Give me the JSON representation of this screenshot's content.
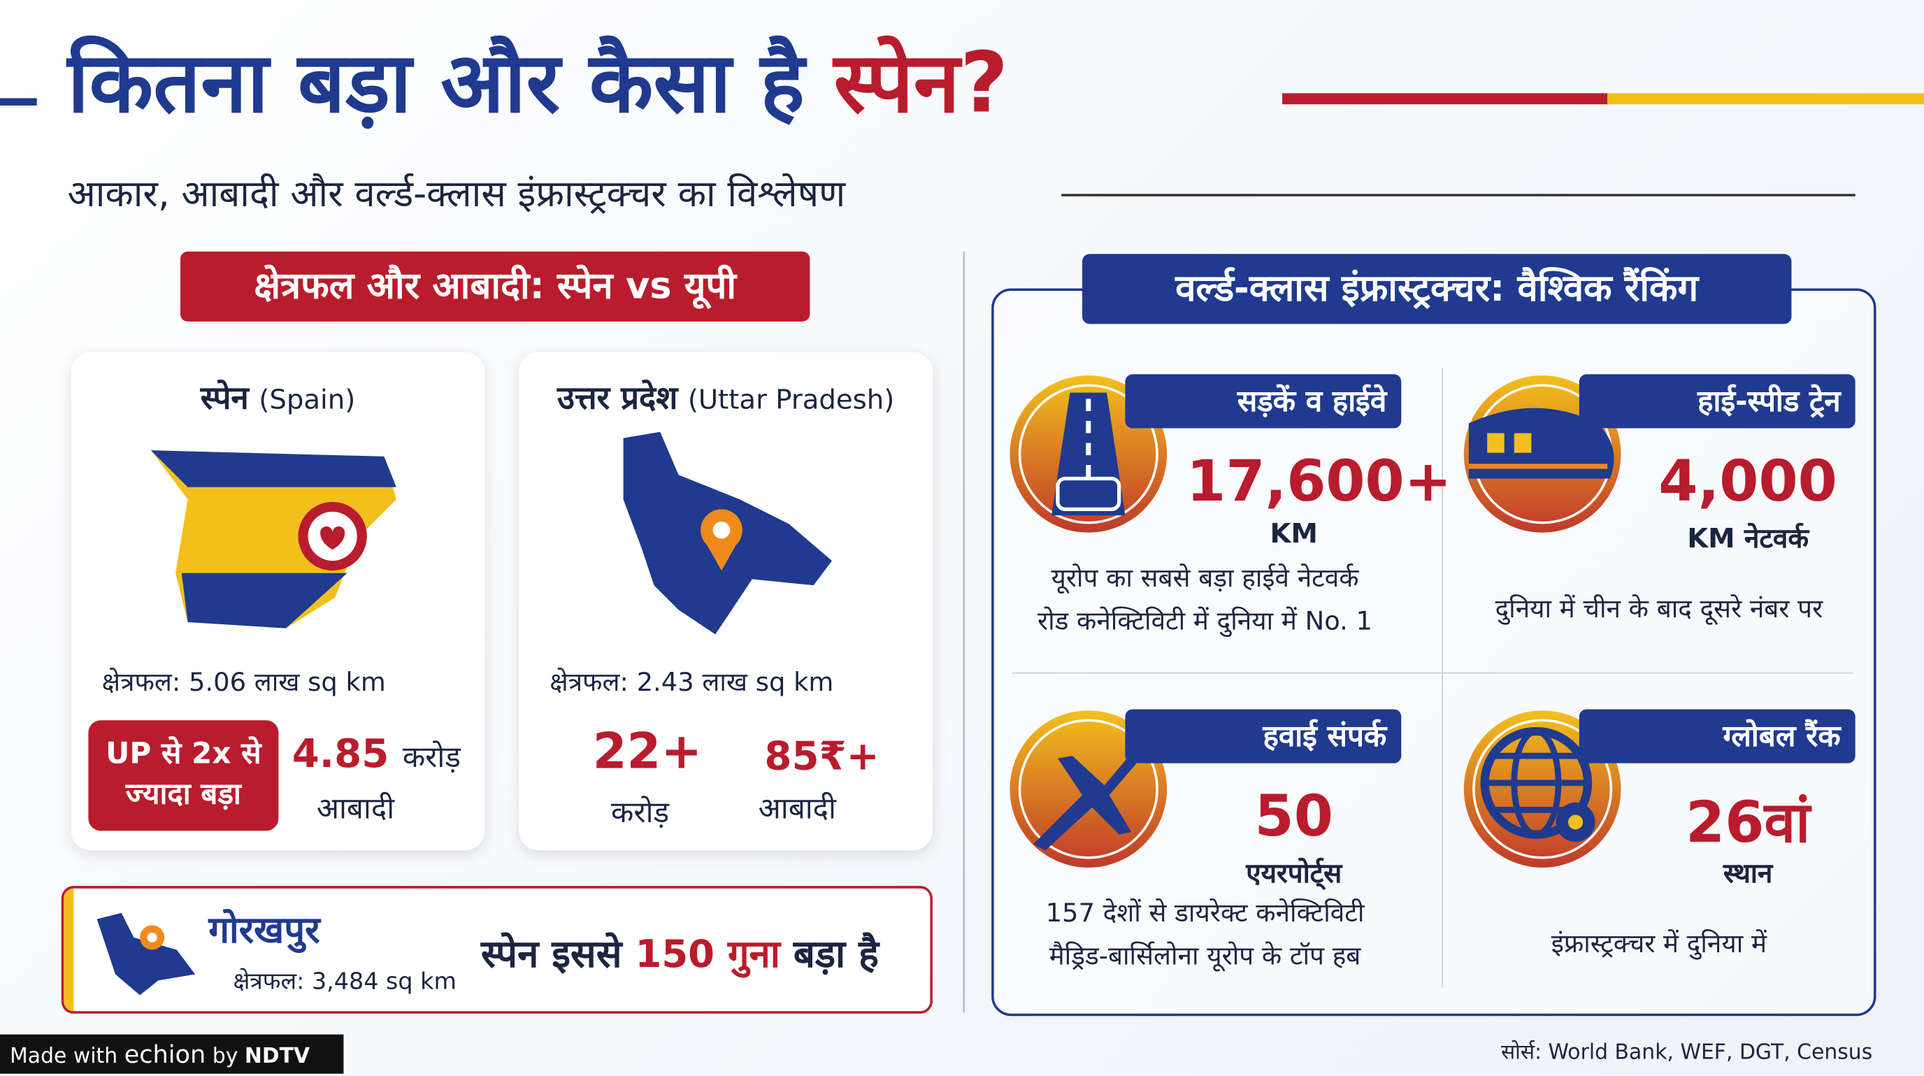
{
  "header": {
    "title_main": "कितना बड़ा और कैसा है",
    "title_highlight": "स्पेन?",
    "subtitle": "आकार, आबादी और वर्ल्ड-क्लास इंफ्रास्ट्रक्चर का विश्लेषण"
  },
  "comparison": {
    "heading": "क्षेत्रफल और आबादी: स्पेन vs यूपी",
    "spain": {
      "name": "स्पेन",
      "name_en": "(Spain)",
      "area": "क्षेत्रफल: 5.06 लाख sq km",
      "badge": [
        "UP से 2x से",
        "ज्यादा बड़ा"
      ],
      "population_value": "4.85",
      "population_unit": "करोड़",
      "population_label": "आबादी"
    },
    "up": {
      "name": "उत्तर प्रदेश",
      "name_en": "(Uttar Pradesh)",
      "area": "क्षेत्रफल: 2.43 लाख sq km",
      "first_value": "22+",
      "first_unit": "करोड़",
      "second_value": "85₹+",
      "second_label": "आबादी"
    }
  },
  "gorakhpur": {
    "name": "गोरखपुर",
    "area": "क्षेत्रफल: 3,484 sq km",
    "statement_pre": "स्पेन इससे",
    "statement_highlight": "150 गुना",
    "statement_post": "बड़ा है"
  },
  "infrastructure": {
    "heading": "वर्ल्ड-क्लास इंफ्रास्ट्रक्चर: वैश्विक रैंकिंग",
    "items": [
      {
        "label": "सड़कें व हाईवे",
        "value": "17,600+",
        "unit": "KM",
        "description": [
          "यूरोप का सबसे बड़ा हाईवे नेटवर्क",
          "रोड कनेक्टिविटी में दुनिया में No. 1"
        ]
      },
      {
        "label": "हाई-स्पीड ट्रेन",
        "value": "4,000",
        "unit": "KM नेटवर्क",
        "description": [
          "दुनिया में चीन के बाद दूसरे नंबर पर"
        ]
      },
      {
        "label": "हवाई संपर्क",
        "value": "50",
        "unit": "एयरपोर्ट्स",
        "description": [
          "157 देशों से डायरेक्ट कनेक्टिविटी",
          "मैड्रिड-बार्सिलोना यूरोप के टॉप हब"
        ]
      },
      {
        "label": "ग्लोबल रैंक",
        "value": "26वां",
        "unit": "स्थान",
        "description": [
          "इंफ्रास्ट्रक्चर में दुनिया में"
        ]
      }
    ]
  },
  "footer": {
    "credit_prefix": "Made with",
    "brand": "echion",
    "by": "by",
    "org": "NDTV",
    "source": "सोर्स: World Bank, WEF, DGT, Census"
  }
}
